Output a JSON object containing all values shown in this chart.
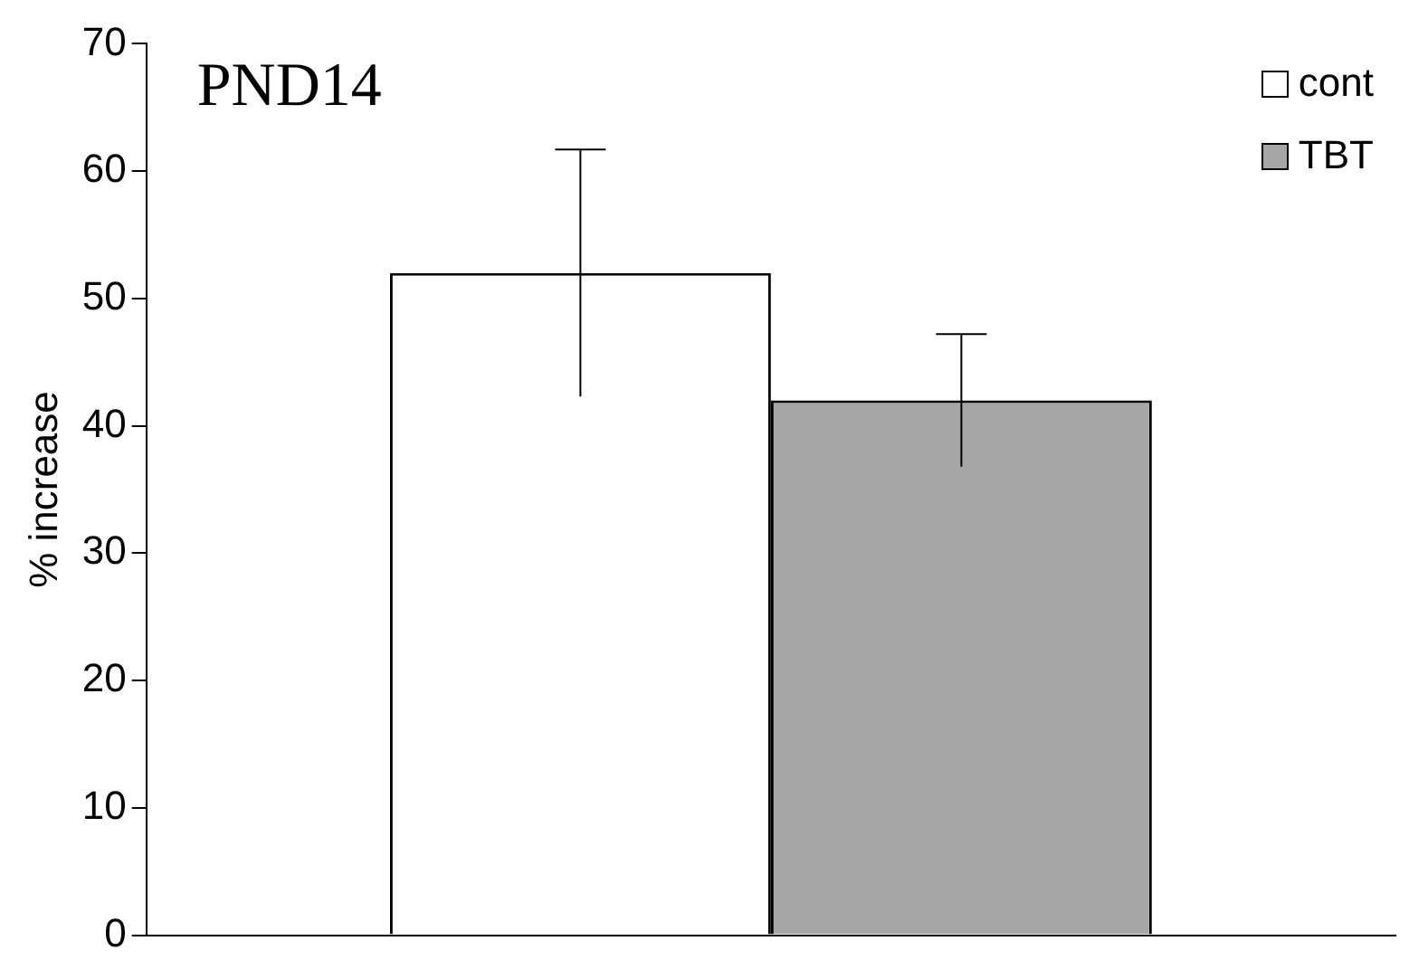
{
  "chart_data": {
    "type": "bar",
    "title": "PND14",
    "ylabel": "% increase",
    "categories": [
      null
    ],
    "series": [
      {
        "name": "cont",
        "color": "#ffffff",
        "values": [
          52
        ],
        "errors": [
          9.7
        ]
      },
      {
        "name": "TBT",
        "color": "#a6a6a6",
        "values": [
          42
        ],
        "errors": [
          5.2
        ]
      }
    ],
    "ylim": [
      0,
      70
    ],
    "yticks": [
      0,
      10,
      20,
      30,
      40,
      50,
      60,
      70
    ],
    "grid": false,
    "legend": "top right"
  }
}
